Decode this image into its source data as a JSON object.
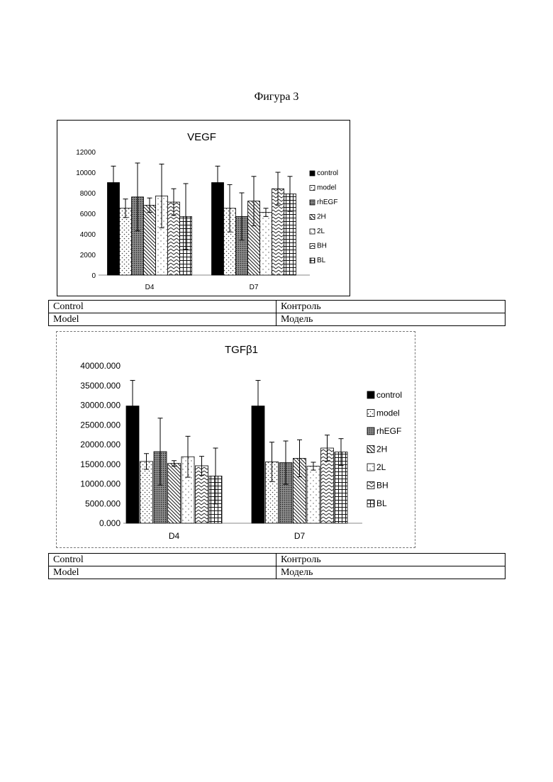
{
  "figure_title": "Фигура 3",
  "chart_data": [
    {
      "type": "bar",
      "title": "VEGF",
      "categories": [
        "D4",
        "D7"
      ],
      "ylim": [
        0,
        12000
      ],
      "yticks": [
        "0",
        "2000",
        "4000",
        "6000",
        "8000",
        "10000",
        "12000"
      ],
      "ytick_values": [
        0,
        2000,
        4000,
        6000,
        8000,
        10000,
        12000
      ],
      "grid": false,
      "legend_position": "right",
      "series": [
        {
          "name": "control",
          "values": [
            9000,
            9000
          ],
          "errors": [
            1600,
            1600
          ],
          "pattern": "solid"
        },
        {
          "name": "model",
          "values": [
            6500,
            6500
          ],
          "errors": [
            900,
            2300
          ],
          "pattern": "dots"
        },
        {
          "name": "rhEGF",
          "values": [
            7600,
            5700
          ],
          "errors": [
            3300,
            2300
          ],
          "pattern": "dense"
        },
        {
          "name": "2H",
          "values": [
            6800,
            7200
          ],
          "errors": [
            700,
            2400
          ],
          "pattern": "diag"
        },
        {
          "name": "2L",
          "values": [
            7700,
            6100
          ],
          "errors": [
            3100,
            400
          ],
          "pattern": "sparse"
        },
        {
          "name": "BH",
          "values": [
            7100,
            8400
          ],
          "errors": [
            1300,
            1600
          ],
          "pattern": "zigzag"
        },
        {
          "name": "BL",
          "values": [
            5700,
            7900
          ],
          "errors": [
            3200,
            1700
          ],
          "pattern": "grid"
        }
      ]
    },
    {
      "type": "bar",
      "title": "TGFβ1",
      "categories": [
        "D4",
        "D7"
      ],
      "ylim": [
        0,
        40000
      ],
      "yticks": [
        "0.000",
        "5000.000",
        "10000.000",
        "15000.000",
        "20000.000",
        "25000.000",
        "30000.000",
        "35000.000",
        "40000.000"
      ],
      "ytick_values": [
        0,
        5000,
        10000,
        15000,
        20000,
        25000,
        30000,
        35000,
        40000
      ],
      "grid": false,
      "legend_position": "right",
      "series": [
        {
          "name": "control",
          "values": [
            29800,
            29800
          ],
          "errors": [
            6500,
            6500
          ],
          "pattern": "solid"
        },
        {
          "name": "model",
          "values": [
            15700,
            15600
          ],
          "errors": [
            2000,
            5000
          ],
          "pattern": "dots"
        },
        {
          "name": "rhEGF",
          "values": [
            18200,
            15400
          ],
          "errors": [
            8500,
            5500
          ],
          "pattern": "dense"
        },
        {
          "name": "2H",
          "values": [
            15200,
            16500
          ],
          "errors": [
            700,
            4700
          ],
          "pattern": "diag"
        },
        {
          "name": "2L",
          "values": [
            16900,
            14500
          ],
          "errors": [
            5200,
            1000
          ],
          "pattern": "sparse"
        },
        {
          "name": "BH",
          "values": [
            14600,
            19100
          ],
          "errors": [
            2400,
            3300
          ],
          "pattern": "zigzag"
        },
        {
          "name": "BL",
          "values": [
            12000,
            18100
          ],
          "errors": [
            7100,
            3400
          ],
          "pattern": "grid"
        }
      ]
    }
  ],
  "translation_tables": [
    {
      "rows": [
        {
          "en": "Control",
          "ru": "Контроль"
        },
        {
          "en": "Model",
          "ru": "Модель"
        }
      ]
    },
    {
      "rows": [
        {
          "en": "Control",
          "ru": "Контроль"
        },
        {
          "en": "Model",
          "ru": "Модель"
        }
      ]
    }
  ]
}
